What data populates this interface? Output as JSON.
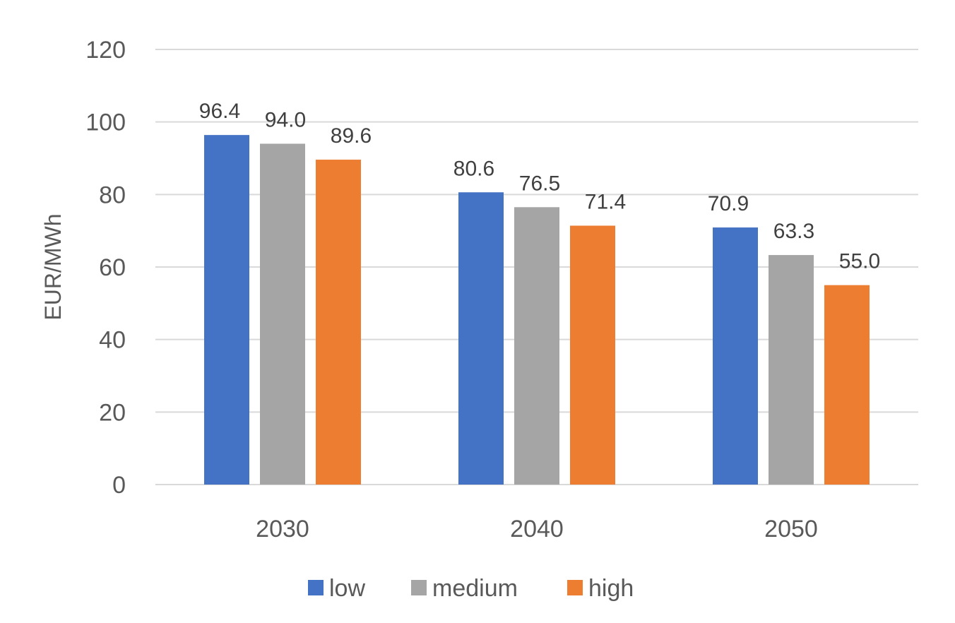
{
  "chart_data": {
    "type": "bar",
    "categories": [
      "2030",
      "2040",
      "2050"
    ],
    "series": [
      {
        "name": "low",
        "values": [
          96.4,
          80.6,
          70.9
        ],
        "color": "#4472c4"
      },
      {
        "name": "medium",
        "values": [
          94.0,
          76.5,
          63.3
        ],
        "color": "#a5a5a5"
      },
      {
        "name": "high",
        "values": [
          89.6,
          71.4,
          55.0
        ],
        "color": "#ed7d31"
      }
    ],
    "data_labels": [
      [
        "96.4",
        "80.6",
        "70.9"
      ],
      [
        "94.0",
        "76.5",
        "63.3"
      ],
      [
        "89.6",
        "71.4",
        "55.0"
      ]
    ],
    "ylabel": "EUR/MWh",
    "xlabel": "",
    "ylim": [
      0,
      120
    ],
    "yticks": [
      0,
      20,
      40,
      60,
      80,
      100,
      120
    ],
    "grid": true,
    "legend_position": "bottom"
  }
}
